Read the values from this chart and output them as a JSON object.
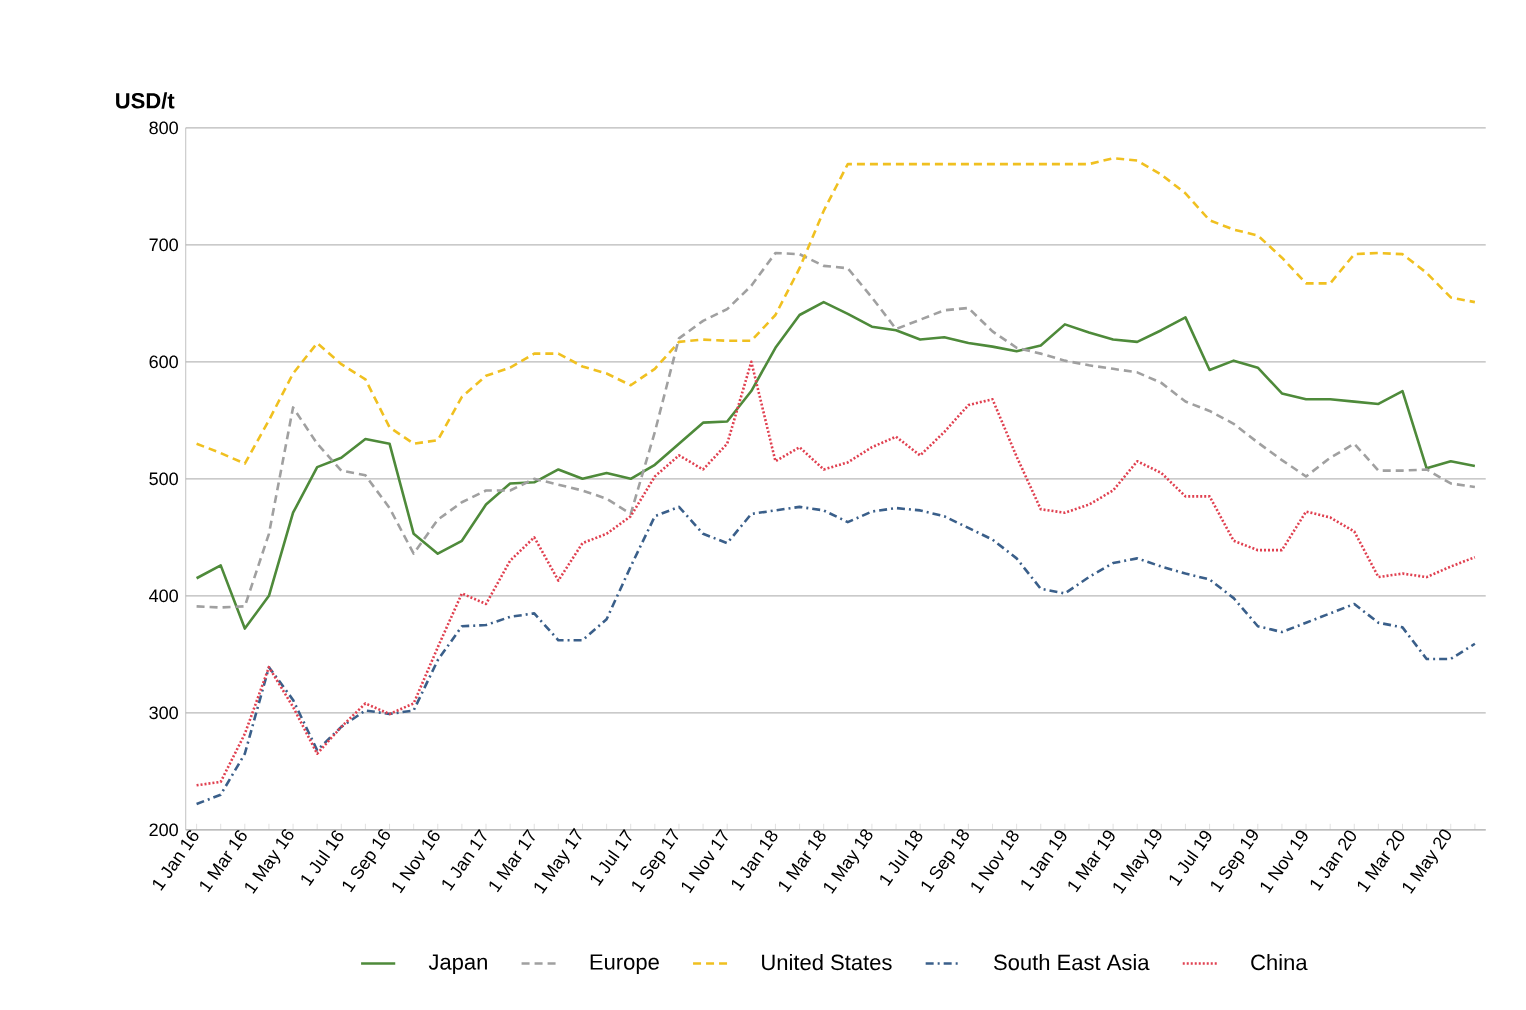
{
  "chart_data": {
    "type": "line",
    "ylabel": "USD/t",
    "categories": [
      "1 Jan 16",
      null,
      "1 Mar 16",
      null,
      "1 May 16",
      null,
      "1 Jul 16",
      null,
      "1 Sep 16",
      null,
      "1 Nov 16",
      null,
      "1 Jan 17",
      null,
      "1 Mar 17",
      null,
      "1 May 17",
      null,
      "1 Jul 17",
      null,
      "1 Sep 17",
      null,
      "1 Nov 17",
      null,
      "1 Jan 18",
      null,
      "1 Mar 18",
      null,
      "1 May 18",
      null,
      "1 Jul 18",
      null,
      "1 Sep 18",
      null,
      "1 Nov 18",
      null,
      "1 Jan 19",
      null,
      "1 Mar 19",
      null,
      "1 May 19",
      null,
      "1 Jul 19",
      null,
      "1 Sep 19",
      null,
      "1 Nov 19",
      null,
      "1 Jan 20",
      null,
      "1 Mar 20",
      null,
      "1 May 20",
      null
    ],
    "series": [
      {
        "name": "Japan",
        "color": "#4e8a3a",
        "line_style": "solid",
        "values": [
          415,
          426,
          372,
          400,
          471,
          510,
          518,
          534,
          530,
          453,
          436,
          447,
          478,
          496,
          497,
          508,
          500,
          505,
          500,
          512,
          530,
          548,
          549,
          575,
          612,
          640,
          651,
          641,
          630,
          627,
          619,
          621,
          616,
          613,
          609,
          614,
          632,
          625,
          619,
          617,
          627,
          638,
          593,
          601,
          595,
          573,
          568,
          568,
          566,
          564,
          575,
          509,
          515,
          511
        ]
      },
      {
        "name": "Europe",
        "color": "#a0a0a0",
        "line_style": "dashed",
        "values": [
          391,
          390,
          391,
          453,
          561,
          530,
          507,
          503,
          475,
          436,
          465,
          480,
          490,
          490,
          500,
          495,
          490,
          483,
          470,
          540,
          620,
          635,
          645,
          665,
          693,
          692,
          682,
          680,
          655,
          628,
          636,
          644,
          646,
          626,
          612,
          607,
          601,
          597,
          594,
          591,
          582,
          566,
          558,
          547,
          531,
          516,
          502,
          518,
          530,
          507,
          507,
          508,
          496,
          493
        ]
      },
      {
        "name": "United States",
        "color": "#f0c020",
        "line_style": "dashed",
        "values": [
          530,
          522,
          513,
          550,
          590,
          616,
          598,
          585,
          544,
          530,
          533,
          570,
          588,
          595,
          607,
          607,
          596,
          590,
          580,
          594,
          617,
          619,
          618,
          618,
          640,
          680,
          729,
          769,
          769,
          769,
          769,
          769,
          769,
          769,
          769,
          769,
          769,
          769,
          774,
          772,
          760,
          744,
          721,
          713,
          708,
          689,
          667,
          667,
          692,
          693,
          692,
          676,
          655,
          651
        ]
      },
      {
        "name": "South East Asia",
        "color": "#3a5f8a",
        "line_style": "dashdot",
        "values": [
          222,
          230,
          265,
          339,
          311,
          268,
          288,
          302,
          299,
          302,
          345,
          374,
          375,
          382,
          385,
          362,
          362,
          380,
          425,
          468,
          476,
          453,
          445,
          470,
          473,
          476,
          473,
          463,
          472,
          475,
          473,
          468,
          458,
          448,
          432,
          406,
          402,
          416,
          428,
          432,
          425,
          419,
          414,
          398,
          374,
          369,
          377,
          385,
          393,
          377,
          373,
          346,
          346,
          359
        ]
      },
      {
        "name": "China",
        "color": "#e04050",
        "line_style": "dotted",
        "values": [
          238,
          241,
          282,
          339,
          305,
          265,
          288,
          308,
          299,
          308,
          356,
          402,
          393,
          430,
          450,
          413,
          445,
          453,
          468,
          502,
          520,
          508,
          530,
          600,
          515,
          527,
          508,
          514,
          527,
          536,
          520,
          540,
          563,
          568,
          519,
          474,
          471,
          478,
          490,
          515,
          505,
          485,
          485,
          447,
          439,
          439,
          472,
          467,
          455,
          416,
          419,
          416,
          425,
          433
        ]
      }
    ],
    "ylim": [
      200,
      800
    ],
    "yticks": [
      200,
      300,
      400,
      500,
      600,
      700,
      800
    ],
    "grid": "y",
    "legend": "bottom",
    "marker": "none"
  }
}
